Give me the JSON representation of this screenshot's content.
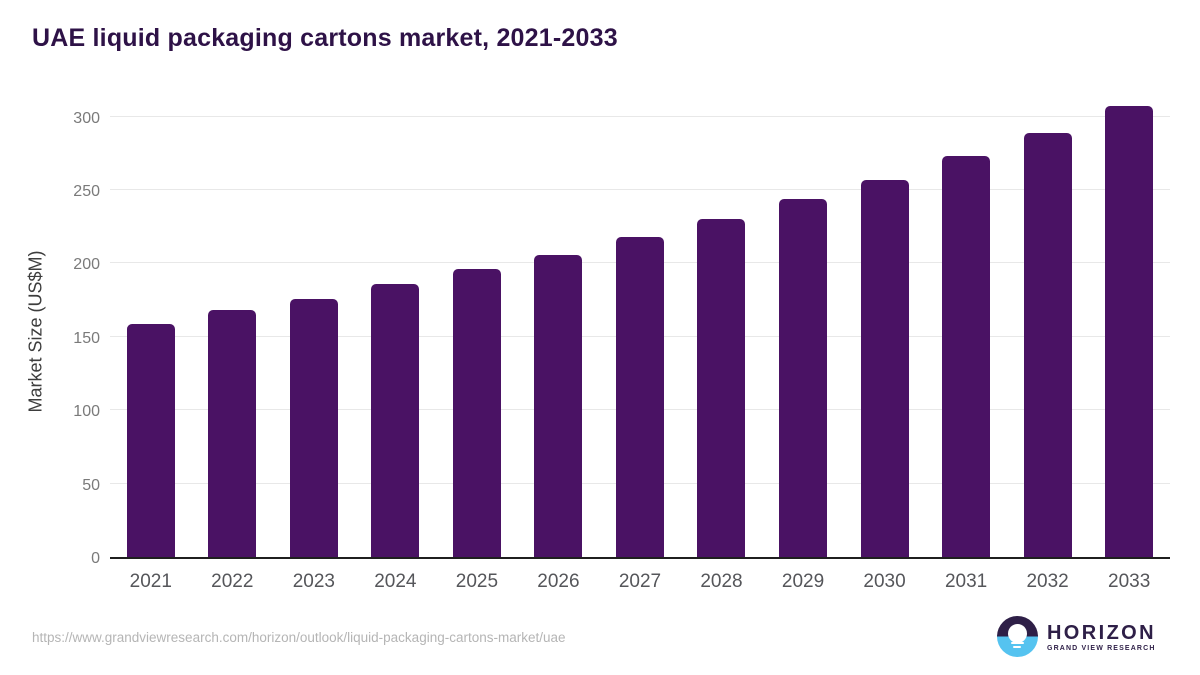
{
  "page": {
    "title": "UAE liquid packaging cartons market, 2021-2033"
  },
  "chart_data": {
    "type": "bar",
    "title": "UAE liquid packaging cartons market, 2021-2033",
    "xlabel": "",
    "ylabel": "Market Size (US$M)",
    "categories": [
      "2021",
      "2022",
      "2023",
      "2024",
      "2025",
      "2026",
      "2027",
      "2028",
      "2029",
      "2030",
      "2031",
      "2032",
      "2033"
    ],
    "values": [
      159,
      168,
      176,
      186,
      196,
      206,
      218,
      230,
      244,
      257,
      273,
      289,
      307
    ],
    "yticks": [
      0,
      50,
      100,
      150,
      200,
      250,
      300
    ],
    "ylim": [
      0,
      310
    ],
    "grid": "horizontal",
    "legend": "none",
    "bar_color": "#4A1264"
  },
  "footer": {
    "source_url": "https://www.grandviewresearch.com/horizon/outlook/liquid-packaging-cartons-market/uae",
    "logo": {
      "brand": "HORIZON",
      "subtitle": "GRAND VIEW RESEARCH"
    }
  },
  "colors": {
    "bar": "#4A1264",
    "title": "#2E1247",
    "axis_line": "#1F1F1F",
    "gridline": "#E8E8E8",
    "tick_label": "#7A7A7A",
    "x_label": "#55565A",
    "axis_title": "#3D3D3D",
    "url_text": "#B5B5B5",
    "logo_purple": "#2E1F47",
    "logo_blue": "#55C3F0"
  }
}
